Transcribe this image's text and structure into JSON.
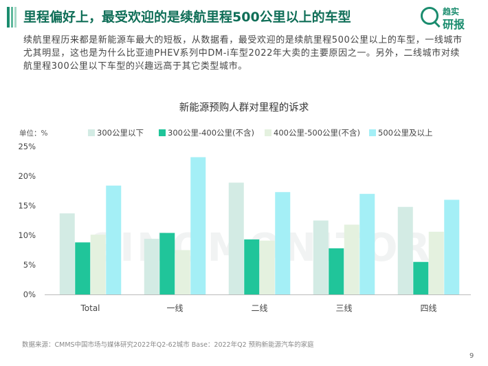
{
  "header": {
    "title": "里程偏好上，最受欢迎的是续航里程500公里以上的车型",
    "logo_line1": "趋实",
    "logo_line2": "研报"
  },
  "body_text": "续航里程历来都是新能源车最大的短板，从数据看，最受欢迎的是续航里程500公里以上的车型，一线城市尤其明显，这也是为什么比亚迪PHEV系列中DM-i车型2022年大卖的主要原因之一。另外，二线城市对续航里程300公里以下车型的兴趣远高于其它类型城市。",
  "chart_data": {
    "type": "bar",
    "title": "新能源预购人群对里程的诉求",
    "unit_label": "单位：%",
    "categories": [
      "Total",
      "一线",
      "二线",
      "三线",
      "四线"
    ],
    "series": [
      {
        "name": "300公里以下",
        "color": "#d3ebe4",
        "values": [
          13.7,
          9.4,
          18.9,
          12.5,
          14.8
        ]
      },
      {
        "name": "300公里-400公里(不含)",
        "color": "#20c59a",
        "values": [
          8.8,
          10.4,
          9.3,
          7.8,
          5.5
        ]
      },
      {
        "name": "400公里-500公里(不含)",
        "color": "#e4f1df",
        "values": [
          10.1,
          7.5,
          9.1,
          11.8,
          10.6
        ]
      },
      {
        "name": "500公里及以上",
        "color": "#a4eff6",
        "values": [
          18.4,
          23.2,
          17.3,
          17.0,
          16.0
        ]
      }
    ],
    "y_ticks": [
      "0%",
      "5%",
      "10%",
      "15%",
      "20%",
      "25%"
    ],
    "ylim": [
      0,
      25
    ],
    "grid": false,
    "legend_position": "top"
  },
  "watermark": "SINOMONITOR",
  "footnote": "数据来源：CMMS中国市场与媒体研究2022年Q2-62城市  Base：2022年Q2 预购新能源汽车的家庭",
  "page_number": "9"
}
